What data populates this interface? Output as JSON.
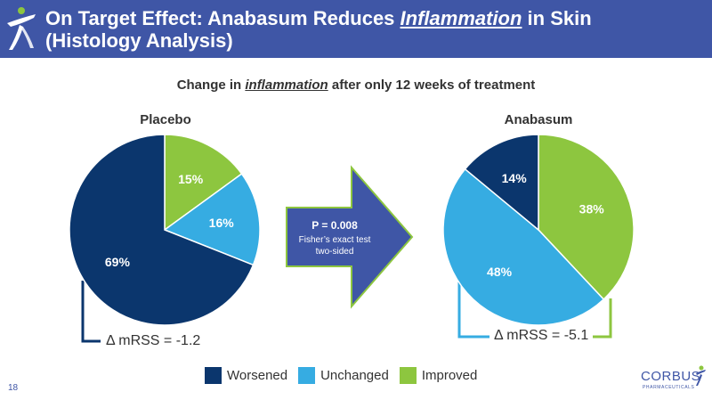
{
  "header": {
    "title_part1": "On Target Effect: Anabasum Reduces ",
    "title_emph": "Inflammation",
    "title_part2": " in Skin",
    "title_line2": "(Histology Analysis)"
  },
  "subtitle": {
    "part1": "Change in ",
    "emph": "inflammation",
    "part2": " after only 12 weeks of treatment"
  },
  "colors": {
    "worsened": "#0b366d",
    "unchanged": "#36ace2",
    "improved": "#8dc63f",
    "header": "#3f56a6"
  },
  "chart_data": [
    {
      "type": "pie",
      "title": "Placebo",
      "categories": [
        "Improved",
        "Unchanged",
        "Worsened"
      ],
      "values": [
        15,
        16,
        69
      ],
      "labels": [
        "15%",
        "16%",
        "69%"
      ],
      "annotation": "Δ mRSS = -1.2"
    },
    {
      "type": "pie",
      "title": "Anabasum",
      "categories": [
        "Improved",
        "Unchanged",
        "Worsened"
      ],
      "values": [
        38,
        48,
        14
      ],
      "labels": [
        "38%",
        "48%",
        "14%"
      ],
      "annotation": "Δ mRSS = -5.1"
    }
  ],
  "arrow": {
    "pvalue": "P = 0.008",
    "line1": "Fisher’s exact test",
    "line2": "two-sided"
  },
  "legend": [
    {
      "label": "Worsened",
      "color": "#0b366d"
    },
    {
      "label": "Unchanged",
      "color": "#36ace2"
    },
    {
      "label": "Improved",
      "color": "#8dc63f"
    }
  ],
  "footer": {
    "page_number": "18",
    "logo_text": "CORBUS",
    "logo_subtext": "PHARMACEUTICALS"
  }
}
